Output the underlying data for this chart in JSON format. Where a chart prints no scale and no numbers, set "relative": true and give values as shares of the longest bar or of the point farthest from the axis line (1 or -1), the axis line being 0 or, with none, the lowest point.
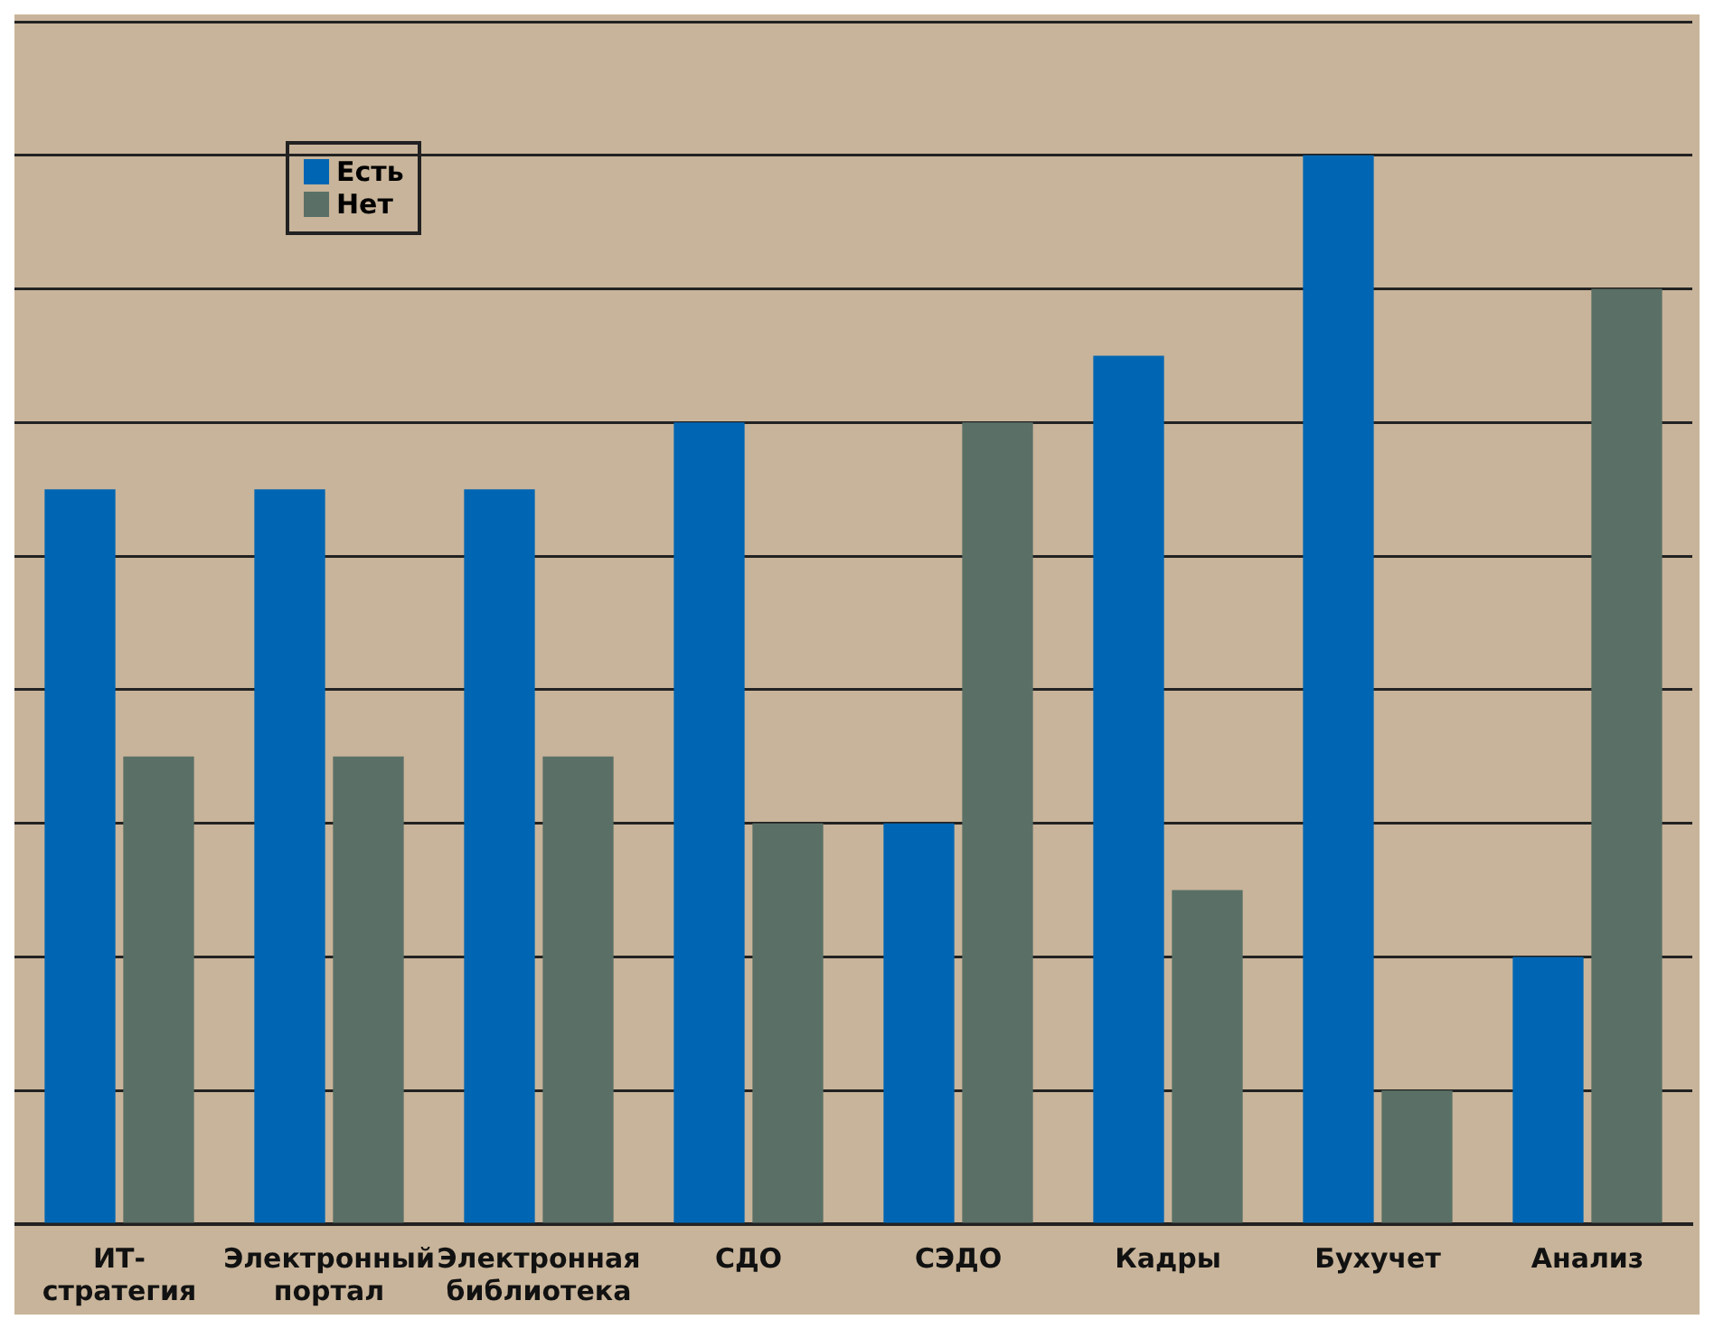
{
  "chart_data": {
    "type": "bar",
    "relative": true,
    "grid": "y",
    "legend": "top left",
    "categories": [
      "ИТ-стратегия",
      "Электронный портал",
      "Электронная библиотека",
      "СДО",
      "СЭДО",
      "Кадры",
      "Бухучет",
      "Анализ"
    ],
    "series": [
      {
        "name": "Есть",
        "color": "#0066b3",
        "values": [
          0.6875,
          0.6875,
          0.6875,
          0.75,
          0.375,
          0.8125,
          1,
          0.25
        ]
      },
      {
        "name": "Нет",
        "color": "#5a7066",
        "values": [
          0.4375,
          0.4375,
          0.4375,
          0.375,
          0.75,
          0.3125,
          0.125,
          0.875
        ]
      }
    ]
  }
}
